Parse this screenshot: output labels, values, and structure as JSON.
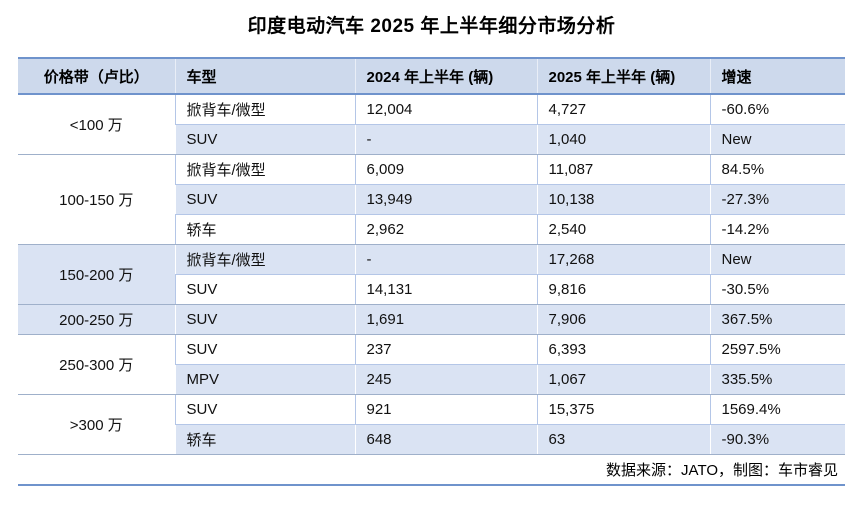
{
  "title": "印度电动汽车 2025 年上半年细分市场分析",
  "table": {
    "headers": [
      "价格带（卢比）",
      "车型",
      "2024 年上半年 (辆)",
      "2025 年上半年 (辆)",
      "增速"
    ],
    "groups": [
      {
        "band": "<100 万",
        "rows": [
          {
            "type": "掀背车/微型",
            "y2024": "12,004",
            "y2025": "4,727",
            "growth": "-60.6%"
          },
          {
            "type": "SUV",
            "y2024": "-",
            "y2025": "1,040",
            "growth": "New"
          }
        ]
      },
      {
        "band": "100-150 万",
        "rows": [
          {
            "type": "掀背车/微型",
            "y2024": "6,009",
            "y2025": "11,087",
            "growth": "84.5%"
          },
          {
            "type": "SUV",
            "y2024": "13,949",
            "y2025": "10,138",
            "growth": "-27.3%"
          },
          {
            "type": "轿车",
            "y2024": "2,962",
            "y2025": "2,540",
            "growth": "-14.2%"
          }
        ]
      },
      {
        "band": "150-200 万",
        "rows": [
          {
            "type": "掀背车/微型",
            "y2024": "-",
            "y2025": "17,268",
            "growth": "New"
          },
          {
            "type": "SUV",
            "y2024": "14,131",
            "y2025": "9,816",
            "growth": "-30.5%"
          }
        ]
      },
      {
        "band": "200-250 万",
        "rows": [
          {
            "type": "SUV",
            "y2024": "1,691",
            "y2025": "7,906",
            "growth": "367.5%"
          }
        ]
      },
      {
        "band": "250-300 万",
        "rows": [
          {
            "type": "SUV",
            "y2024": "237",
            "y2025": "6,393",
            "growth": "2597.5%"
          },
          {
            "type": "MPV",
            "y2024": "245",
            "y2025": "1,067",
            "growth": "335.5%"
          }
        ]
      },
      {
        "band": ">300 万",
        "rows": [
          {
            "type": "SUV",
            "y2024": "921",
            "y2025": "15,375",
            "growth": "1569.4%"
          },
          {
            "type": "轿车",
            "y2024": "648",
            "y2025": "63",
            "growth": "-90.3%"
          }
        ]
      }
    ],
    "footer": "数据来源：JATO，制图：车市睿见"
  },
  "chart_data": {
    "type": "table",
    "title": "印度电动汽车 2025 年上半年细分市场分析",
    "columns": [
      "价格带（卢比）",
      "车型",
      "2024 年上半年 (辆)",
      "2025 年上半年 (辆)",
      "增速"
    ],
    "rows": [
      [
        "<100 万",
        "掀背车/微型",
        "12,004",
        "4,727",
        "-60.6%"
      ],
      [
        "<100 万",
        "SUV",
        "-",
        "1,040",
        "New"
      ],
      [
        "100-150 万",
        "掀背车/微型",
        "6,009",
        "11,087",
        "84.5%"
      ],
      [
        "100-150 万",
        "SUV",
        "13,949",
        "10,138",
        "-27.3%"
      ],
      [
        "100-150 万",
        "轿车",
        "2,962",
        "2,540",
        "-14.2%"
      ],
      [
        "150-200 万",
        "掀背车/微型",
        "-",
        "17,268",
        "New"
      ],
      [
        "150-200 万",
        "SUV",
        "14,131",
        "9,816",
        "-30.5%"
      ],
      [
        "200-250 万",
        "SUV",
        "1,691",
        "7,906",
        "367.5%"
      ],
      [
        "250-300 万",
        "SUV",
        "237",
        "6,393",
        "2597.5%"
      ],
      [
        "250-300 万",
        "MPV",
        "245",
        "1,067",
        "335.5%"
      ],
      [
        ">300 万",
        "SUV",
        "921",
        "15,375",
        "1569.4%"
      ],
      [
        ">300 万",
        "轿车",
        "648",
        "63",
        "-90.3%"
      ]
    ],
    "source_note": "数据来源：JATO，制图：车市睿见"
  },
  "colors": {
    "header-bg": "#cdd9ec",
    "band-bg": "#dae3f3",
    "border-outer": "#6f93cc",
    "border-group": "#9fb0ca",
    "border-light": "#b4c6e7"
  }
}
